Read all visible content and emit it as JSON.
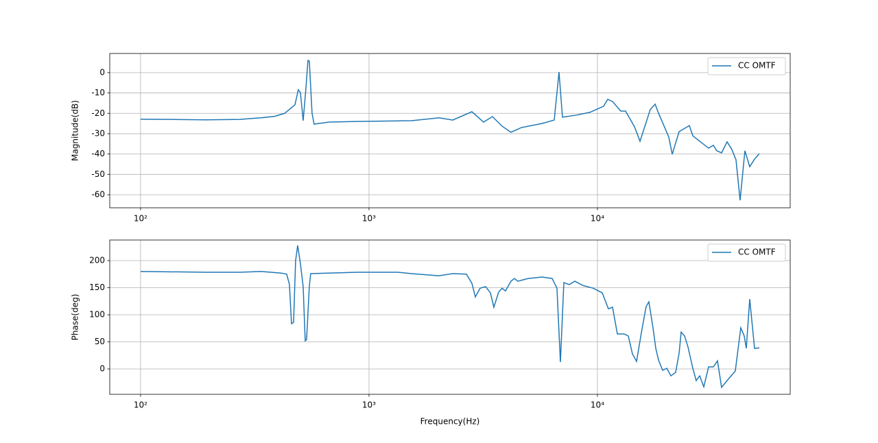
{
  "chart_data": [
    {
      "type": "line",
      "ylabel": "Magnitude(dB)",
      "log_x": true,
      "grid": true,
      "legend": "upper right",
      "xlim": [
        73.3,
        69800
      ],
      "ylim": [
        -66.4,
        9.4
      ],
      "xticks": [
        {
          "value": 100,
          "label": "10²"
        },
        {
          "value": 1000,
          "label": "10³"
        },
        {
          "value": 10000,
          "label": "10⁴"
        }
      ],
      "yticks": [
        -60,
        -50,
        -40,
        -30,
        -20,
        -10,
        0
      ],
      "x": [
        100,
        136.5,
        192.9,
        272.5,
        335.4,
        385.1,
        427.1,
        457.9,
        474.0,
        490.6,
        501.0,
        514.9,
        529.3,
        540.4,
        547.9,
        563.3,
        575.1,
        669.8,
        883.2,
        1535.6,
        2024.8,
        2325.4,
        2821.8,
        3173,
        3471,
        3824,
        4183,
        4642,
        5713,
        6469,
        6789,
        7029,
        8071,
        9268,
        10643,
        11092,
        11644,
        12651,
        13280,
        14530,
        15361,
        17027,
        17883,
        18512,
        20531,
        21255,
        22777,
        25260,
        26148,
        28024,
        30658,
        32175,
        33306,
        34950,
        36945,
        38774,
        40413,
        42125,
        44213,
        46416,
        48725,
        51130
      ],
      "series": [
        {
          "name": "CC OMTF",
          "color": "#1f77b4",
          "values": [
            -22.9,
            -23,
            -23.2,
            -23,
            -22.2,
            -21.5,
            -20,
            -17.2,
            -15.8,
            -8.4,
            -9.8,
            -23.6,
            -8,
            6,
            5.7,
            -20,
            -25.3,
            -24.3,
            -24,
            -23.6,
            -22.2,
            -23.3,
            -19.2,
            -24.3,
            -21.6,
            -26.3,
            -29.3,
            -27,
            -25,
            -23.3,
            0.3,
            -21.9,
            -20.9,
            -19.5,
            -16.5,
            -13.1,
            -14.2,
            -18.9,
            -18.9,
            -26.6,
            -33.7,
            -18.2,
            -15.5,
            -19.9,
            -31.7,
            -40.1,
            -29,
            -26,
            -31,
            -33.7,
            -37.1,
            -35.7,
            -38.4,
            -39.4,
            -34,
            -37.8,
            -42.8,
            -62.7,
            -38.4,
            -46.2,
            -42.5,
            -39.8
          ]
        }
      ]
    },
    {
      "type": "line",
      "xlabel": "Frequency(Hz)",
      "ylabel": "Phase(deg)",
      "log_x": true,
      "grid": true,
      "legend": "upper right",
      "xlim": [
        73.3,
        69800
      ],
      "ylim": [
        -46.8,
        238
      ],
      "xticks": [
        {
          "value": 100,
          "label": "10²"
        },
        {
          "value": 1000,
          "label": "10³"
        },
        {
          "value": 10000,
          "label": "10⁴"
        }
      ],
      "yticks": [
        0,
        50,
        100,
        150,
        200
      ],
      "x": [
        100,
        192.9,
        272.5,
        335.4,
        412.6,
        436.1,
        448.4,
        457.9,
        467.5,
        477.2,
        487.2,
        501.0,
        514.9,
        525.7,
        533.0,
        547.9,
        555.5,
        883.2,
        1336.9,
        1535.6,
        2024.8,
        2325.4,
        2669.8,
        2821.8,
        2921,
        3065,
        3239,
        3400,
        3520,
        3695,
        3824,
        3959,
        4183,
        4332,
        4484,
        4974,
        5713,
        6337,
        6648,
        6885,
        7128,
        7533,
        7962,
        8649,
        9593,
        10496,
        11168,
        11644,
        12223,
        13094,
        13652,
        14230,
        14837,
        15572,
        16336,
        16794,
        17507,
        18007,
        18512,
        19291,
        20109,
        20962,
        21999,
        22777,
        23254,
        24070,
        24918,
        26148,
        27066,
        28024,
        29216,
        30658,
        32175,
        33537,
        34950,
        36945,
        40130,
        42418,
        43910,
        44836,
        46416,
        48725,
        51130
      ],
      "series": [
        {
          "name": "CC OMTF",
          "color": "#1f77b4",
          "values": [
            180,
            178.5,
            178.5,
            180,
            177,
            175,
            156,
            83.5,
            86,
            200,
            228,
            194,
            152,
            52,
            54,
            152,
            176,
            178.5,
            178.5,
            176,
            172,
            176,
            175,
            158,
            133,
            149,
            152,
            140.5,
            114,
            142,
            149,
            144,
            162,
            167,
            162,
            167,
            169.6,
            167,
            149,
            12.7,
            159.5,
            155.7,
            162,
            154,
            149,
            140.5,
            111,
            114,
            64.6,
            64.6,
            60.8,
            27.8,
            14,
            67,
            115,
            124,
            76,
            38,
            16.5,
            -2.5,
            1.3,
            -12.7,
            -6.3,
            29,
            68,
            61,
            40.5,
            1.3,
            -21.5,
            -12.7,
            -33,
            3.8,
            3.8,
            15,
            -34,
            -21.5,
            -3.8,
            76,
            61,
            38,
            129,
            38,
            39
          ]
        }
      ]
    }
  ]
}
